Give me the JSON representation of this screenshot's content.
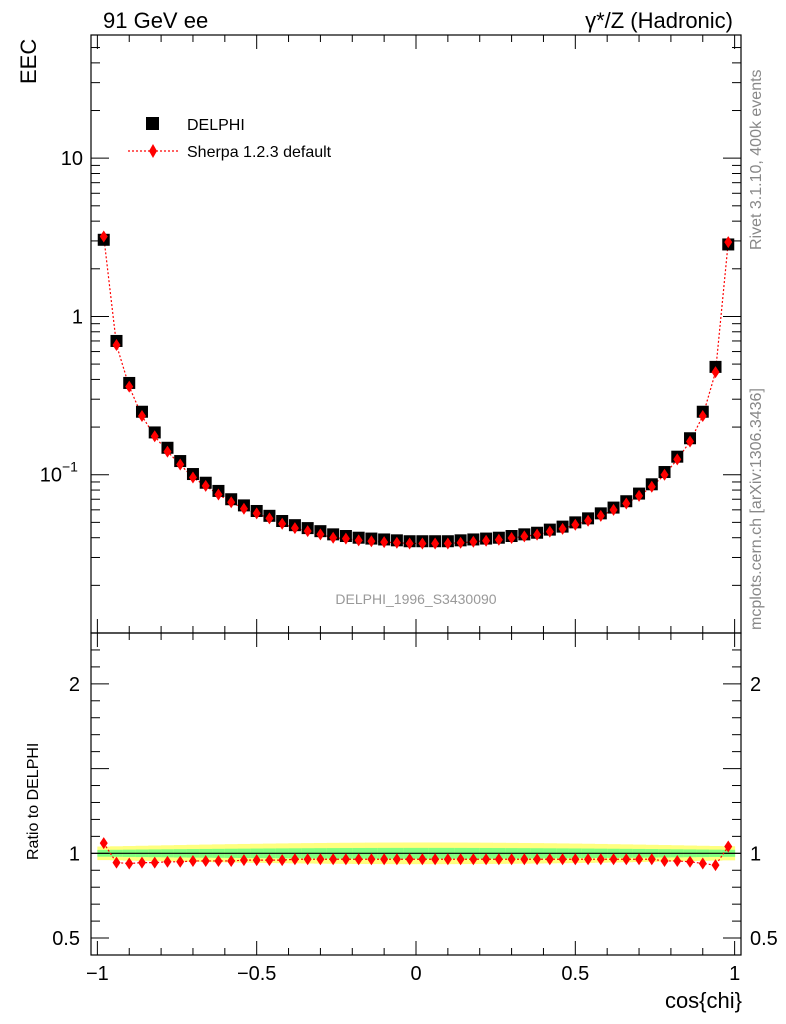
{
  "header": {
    "left": "91 GeV ee",
    "right": "γ*/Z (Hadronic)"
  },
  "side_labels": {
    "rivet": "Rivet 3.1.10,  400k events",
    "mcplots": "mcplots.cern.ch [arXiv:1306.3436]"
  },
  "watermark": "DELPHI_1996_S3430090",
  "chart_data": {
    "type": "scatter",
    "xlabel": "cos{chi}",
    "ylabel": "EEC",
    "ratio_ylabel": "Ratio to DELPHI",
    "xlim": [
      -1.02,
      1.02
    ],
    "ylim_log": [
      0.01,
      60
    ],
    "ratio_ylim": [
      0.4,
      2.3
    ],
    "y_scale": "log",
    "x_ticks": [
      {
        "v": -1,
        "label": "−1"
      },
      {
        "v": -0.5,
        "label": "−0.5"
      },
      {
        "v": 0,
        "label": "0"
      },
      {
        "v": 0.5,
        "label": "0.5"
      },
      {
        "v": 1,
        "label": "1"
      }
    ],
    "y_ticks": [
      {
        "v": 10,
        "label": "10"
      },
      {
        "v": 1,
        "label": "1"
      },
      {
        "v": 0.1,
        "label": "10",
        "sup": "−1"
      }
    ],
    "ratio_ticks": [
      {
        "v": 2,
        "label": "2"
      },
      {
        "v": 1,
        "label": "1"
      },
      {
        "v": 0.5,
        "label": "0.5"
      }
    ],
    "legend": {
      "placement": "top-left",
      "entries": [
        "DELPHI",
        "Sherpa 1.2.3 default"
      ]
    },
    "colors": {
      "data": "#000000",
      "mc": "#ff0000",
      "band_inner": "#7fff7f",
      "band_outer": "#ffff7f"
    },
    "x": [
      -0.98,
      -0.94,
      -0.9,
      -0.86,
      -0.82,
      -0.78,
      -0.74,
      -0.7,
      -0.66,
      -0.62,
      -0.58,
      -0.54,
      -0.5,
      -0.46,
      -0.42,
      -0.38,
      -0.34,
      -0.3,
      -0.26,
      -0.22,
      -0.18,
      -0.14,
      -0.1,
      -0.06,
      -0.02,
      0.02,
      0.06,
      0.1,
      0.14,
      0.18,
      0.22,
      0.26,
      0.3,
      0.34,
      0.38,
      0.42,
      0.46,
      0.5,
      0.54,
      0.58,
      0.62,
      0.66,
      0.7,
      0.74,
      0.78,
      0.82,
      0.86,
      0.9,
      0.94,
      0.98
    ],
    "series": [
      {
        "name": "DELPHI",
        "values": [
          3.05,
          0.7,
          0.38,
          0.25,
          0.185,
          0.148,
          0.122,
          0.101,
          0.089,
          0.079,
          0.07,
          0.064,
          0.059,
          0.055,
          0.051,
          0.048,
          0.046,
          0.044,
          0.042,
          0.041,
          0.04,
          0.0395,
          0.039,
          0.0385,
          0.038,
          0.038,
          0.038,
          0.038,
          0.0385,
          0.039,
          0.0395,
          0.04,
          0.041,
          0.042,
          0.043,
          0.045,
          0.047,
          0.05,
          0.053,
          0.057,
          0.062,
          0.068,
          0.076,
          0.087,
          0.104,
          0.13,
          0.17,
          0.25,
          0.48,
          2.85
        ]
      },
      {
        "name": "Sherpa 1.2.3 default",
        "values": [
          3.2,
          0.66,
          0.36,
          0.235,
          0.175,
          0.14,
          0.116,
          0.096,
          0.085,
          0.075,
          0.067,
          0.061,
          0.057,
          0.053,
          0.049,
          0.046,
          0.044,
          0.042,
          0.04,
          0.0395,
          0.0385,
          0.038,
          0.0375,
          0.0372,
          0.0368,
          0.0368,
          0.0368,
          0.0368,
          0.0372,
          0.0377,
          0.0383,
          0.0388,
          0.0398,
          0.0408,
          0.0418,
          0.0437,
          0.0455,
          0.0483,
          0.0512,
          0.055,
          0.06,
          0.0658,
          0.0735,
          0.084,
          0.1,
          0.125,
          0.162,
          0.235,
          0.445,
          2.95
        ]
      }
    ],
    "ratio": [
      1.06,
      0.945,
      0.94,
      0.945,
      0.945,
      0.95,
      0.95,
      0.955,
      0.955,
      0.955,
      0.955,
      0.96,
      0.96,
      0.96,
      0.96,
      0.965,
      0.965,
      0.965,
      0.965,
      0.965,
      0.965,
      0.965,
      0.965,
      0.965,
      0.965,
      0.965,
      0.965,
      0.965,
      0.965,
      0.965,
      0.965,
      0.965,
      0.965,
      0.965,
      0.965,
      0.965,
      0.965,
      0.965,
      0.965,
      0.965,
      0.965,
      0.965,
      0.965,
      0.965,
      0.955,
      0.955,
      0.95,
      0.94,
      0.93,
      1.04
    ],
    "band_inner": 0.02,
    "band_outer": 0.04
  }
}
